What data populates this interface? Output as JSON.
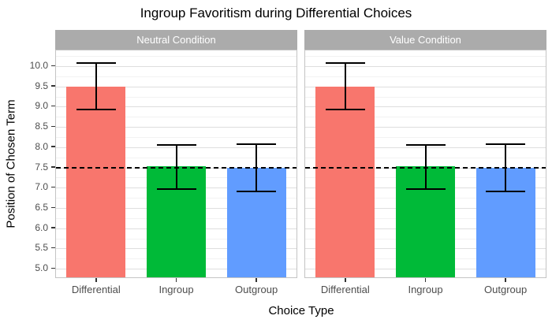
{
  "title": "Ingroup Favoritism during Differential Choices",
  "axes": {
    "x_title": "Choice Type",
    "y_title": "Position of Chosen Term"
  },
  "chart_data": {
    "type": "bar",
    "title": "Ingroup Favoritism during Differential Choices",
    "xlabel": "Choice Type",
    "ylabel": "Position of Chosen Term",
    "legend": "none",
    "grid": "major+minor",
    "facets": [
      {
        "label": "Neutral Condition",
        "categories": [
          "Differential",
          "Ingroup",
          "Outgroup"
        ],
        "values": [
          9.5,
          7.53,
          7.5
        ],
        "error_low": [
          8.93,
          6.97,
          6.91
        ],
        "error_high": [
          10.07,
          8.06,
          8.08
        ]
      },
      {
        "label": "Value Condition",
        "categories": [
          "Differential",
          "Ingroup",
          "Outgroup"
        ],
        "values": [
          9.5,
          7.53,
          7.5
        ],
        "error_low": [
          8.93,
          6.97,
          6.91
        ],
        "error_high": [
          10.07,
          8.06,
          8.08
        ]
      }
    ],
    "bar_colors": [
      "#F8766D",
      "#00BA38",
      "#619CFF"
    ],
    "y_tick_labels": [
      "5.0",
      "5.5",
      "6.0",
      "6.5",
      "7.0",
      "7.5",
      "8.0",
      "8.5",
      "9.0",
      "9.5",
      "10.0"
    ],
    "y_tick_values": [
      5,
      5.5,
      6,
      6.5,
      7,
      7.5,
      8,
      8.5,
      9,
      9.5,
      10
    ],
    "y_minor_values": [
      5.25,
      5.75,
      6.25,
      6.75,
      7.25,
      7.75,
      8.25,
      8.75,
      9.25,
      9.75,
      10.25
    ],
    "panel_value_range": [
      4.79,
      10.39
    ],
    "ref_line_y": 7.5
  },
  "style": {
    "strip_bg": "#ababab",
    "strip_text": "#ffffff",
    "grid_major": "#dedede",
    "grid_minor": "#f2f2f2",
    "panel_border": "#c4c4c4",
    "tick_label_color": "#4d4d4d",
    "error_color": "#000000",
    "ref_line_color": "#000000"
  }
}
